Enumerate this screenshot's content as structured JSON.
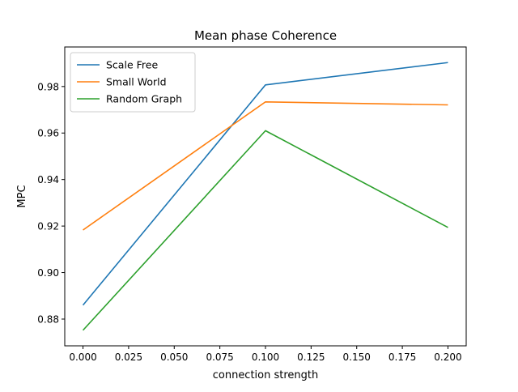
{
  "chart_data": {
    "type": "line",
    "title": "Mean phase Coherence",
    "xlabel": "connection strength",
    "ylabel": "MPC",
    "x": [
      0.0,
      0.1,
      0.2
    ],
    "xlim": [
      -0.01,
      0.21
    ],
    "ylim": [
      0.8685,
      0.997
    ],
    "xticks": [
      0.0,
      0.025,
      0.05,
      0.075,
      0.1,
      0.125,
      0.15,
      0.175,
      0.2
    ],
    "xtick_labels": [
      "0.000",
      "0.025",
      "0.050",
      "0.075",
      "0.100",
      "0.125",
      "0.150",
      "0.175",
      "0.200"
    ],
    "yticks": [
      0.88,
      0.9,
      0.92,
      0.94,
      0.96,
      0.98
    ],
    "ytick_labels": [
      "0.88",
      "0.90",
      "0.92",
      "0.94",
      "0.96",
      "0.98"
    ],
    "grid": false,
    "legend_position": "top-left",
    "series": [
      {
        "name": "Scale Free",
        "color": "#1f77b4",
        "values": [
          0.886,
          0.9807,
          0.9903
        ]
      },
      {
        "name": "Small World",
        "color": "#ff7f0e",
        "values": [
          0.9183,
          0.9734,
          0.9721
        ]
      },
      {
        "name": "Random Graph",
        "color": "#2ca02c",
        "values": [
          0.8752,
          0.961,
          0.9194
        ]
      }
    ]
  }
}
